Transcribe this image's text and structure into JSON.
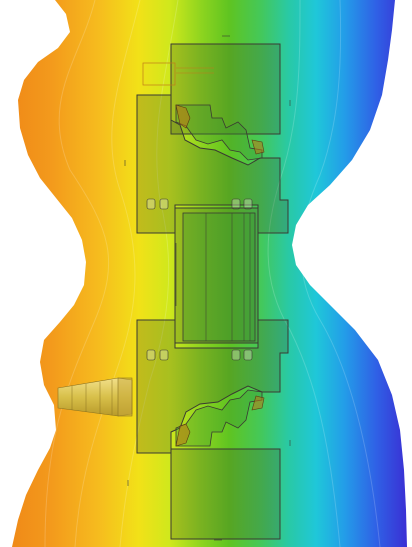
{
  "figure": {
    "description_colors": {
      "warm": "#f39a1c",
      "mid_warm": "#f6d51a",
      "mid": "#62c21f",
      "cool": "#24c7d8",
      "cold": "#3b3fe0"
    },
    "frame_name": "window-profile",
    "icons": {
      "anchor": "screw-anchor-icon"
    }
  }
}
